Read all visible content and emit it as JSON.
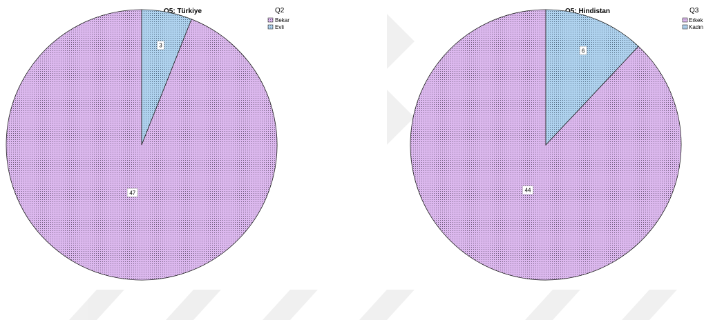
{
  "chart_data": [
    {
      "type": "pie",
      "title": "Q5: Türkiye",
      "legend_title": "Q2",
      "legend_placement": "top-right",
      "categories": [
        "Bekar",
        "Evli"
      ],
      "values": [
        47,
        3
      ],
      "colors": [
        "#dcb8ee",
        "#afd2ee"
      ],
      "data_labels": [
        "47",
        "3"
      ]
    },
    {
      "type": "pie",
      "title": "Q5: Hindistan",
      "legend_title": "Q3",
      "legend_placement": "top-right",
      "categories": [
        "Erkek",
        "Kadın"
      ],
      "values": [
        44,
        6
      ],
      "colors": [
        "#dcb8ee",
        "#afd2ee"
      ],
      "data_labels": [
        "44",
        "6"
      ]
    }
  ]
}
